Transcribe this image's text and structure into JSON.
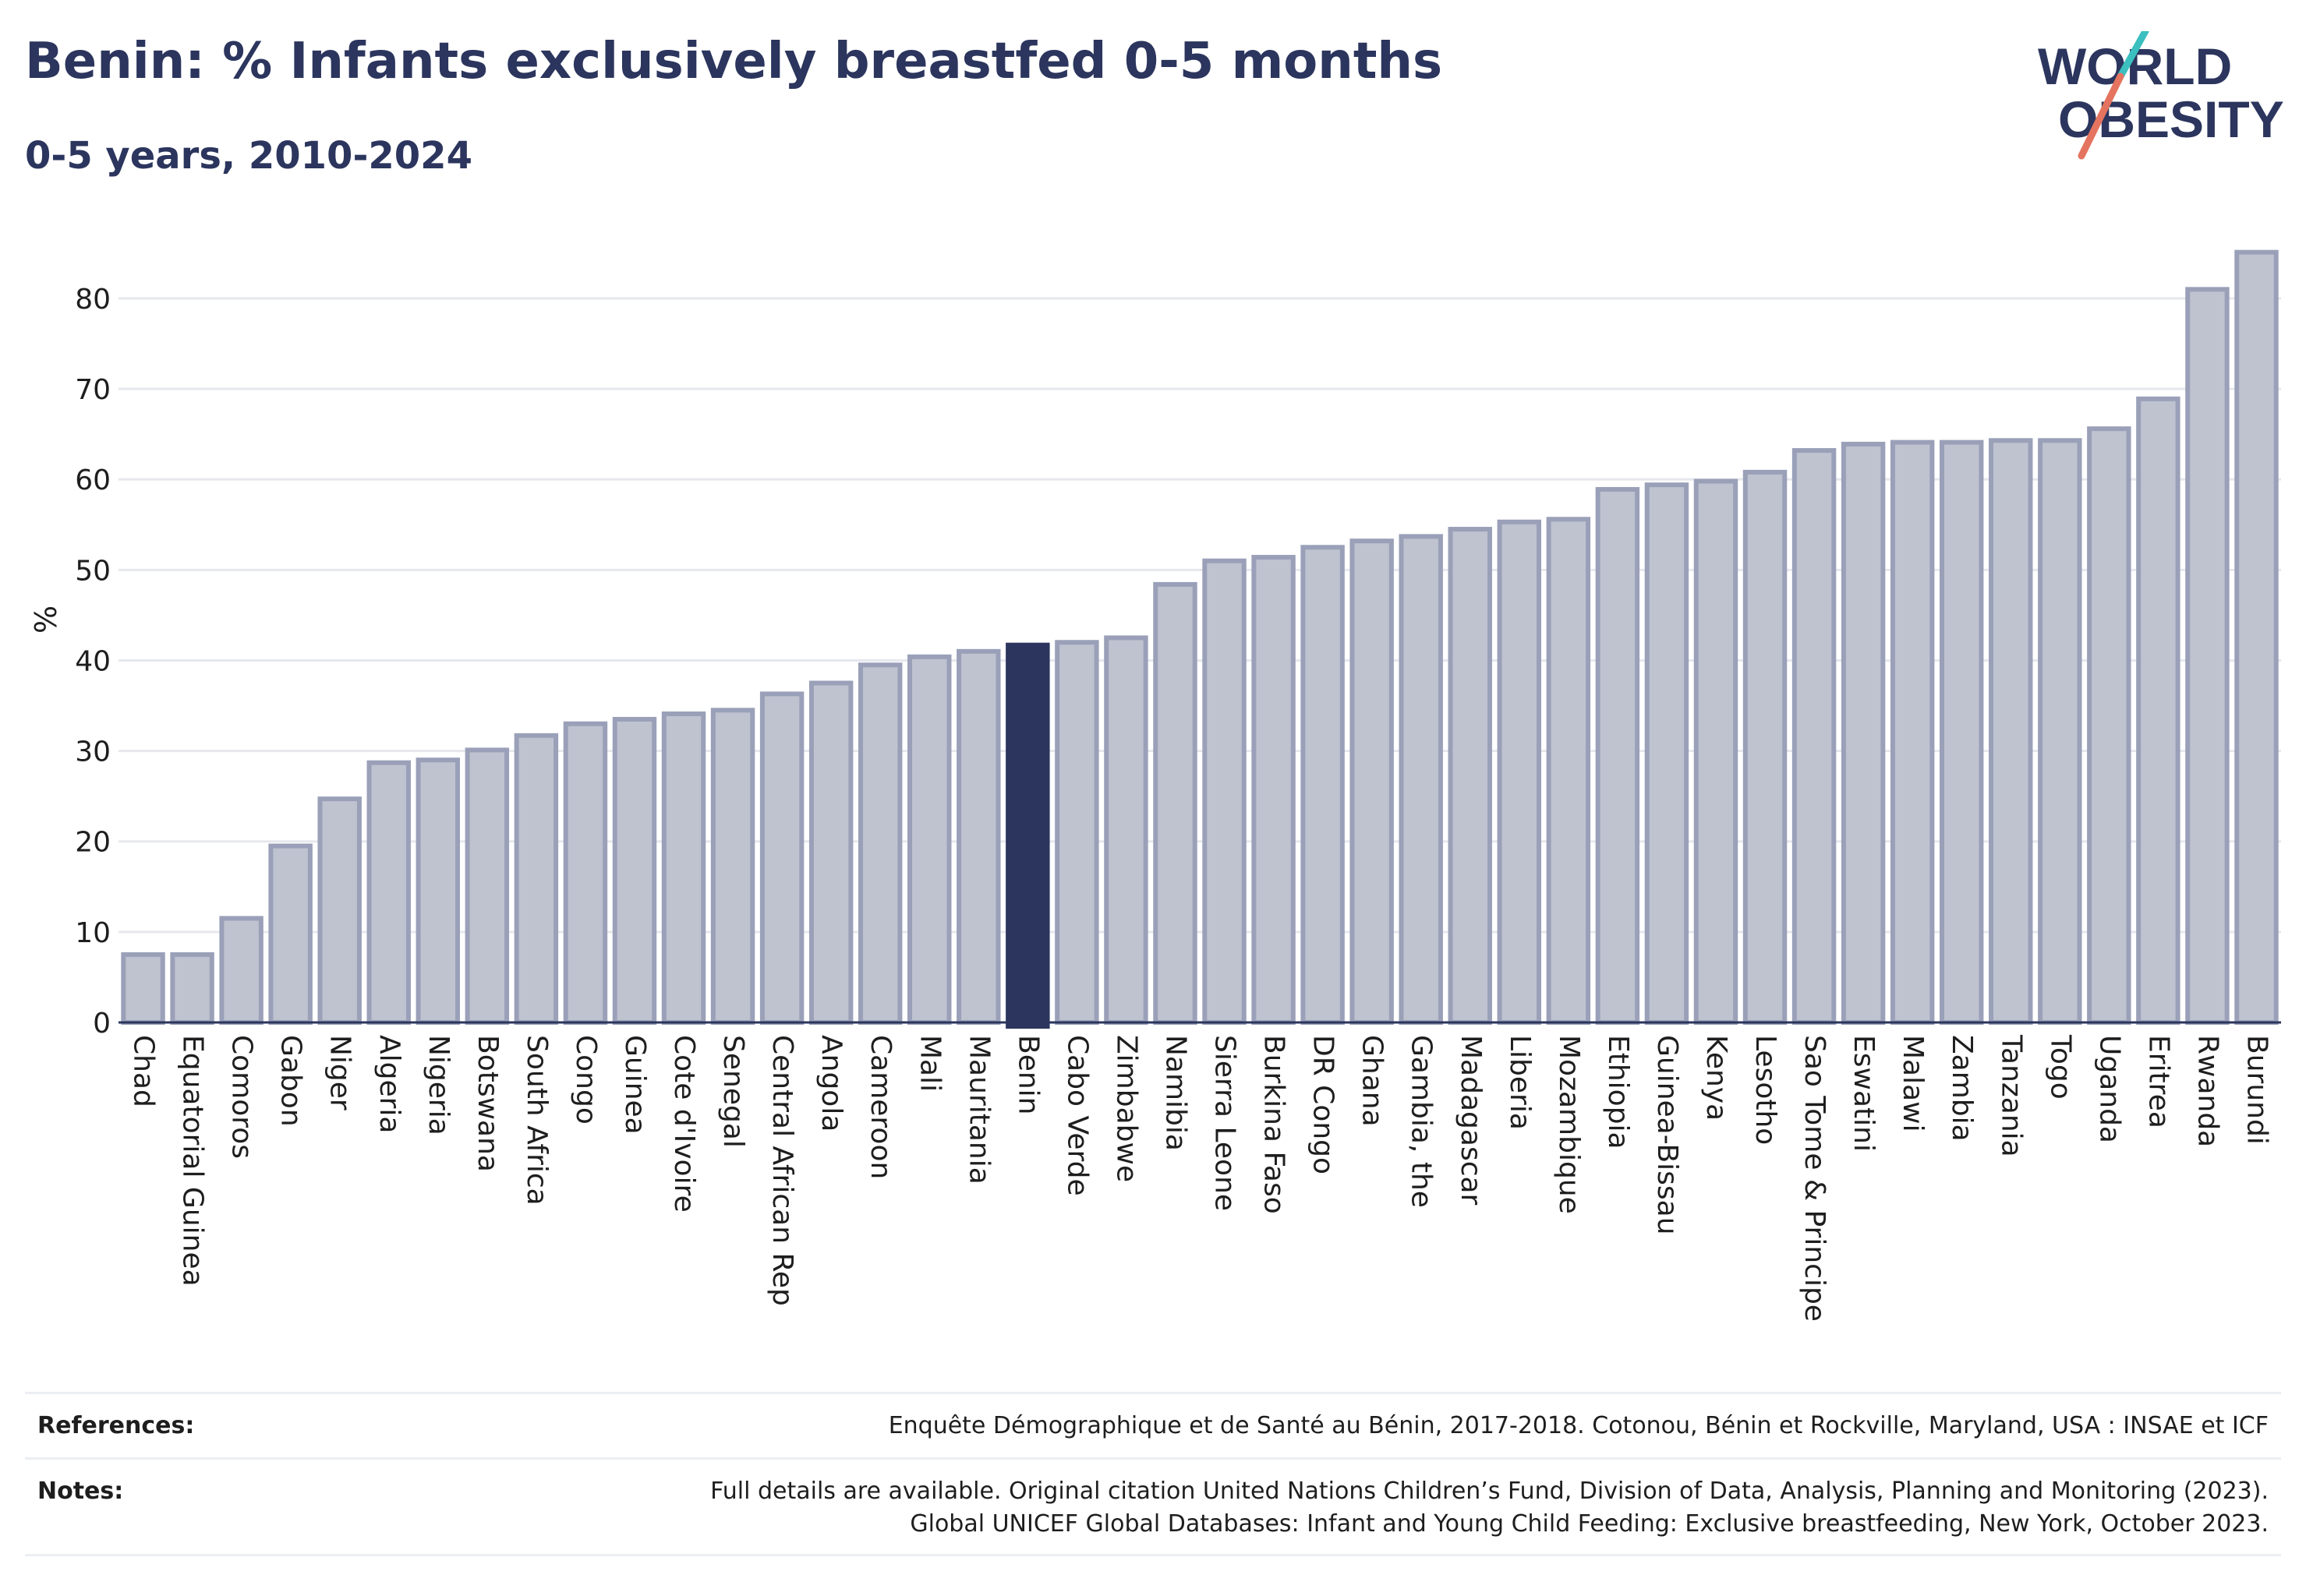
{
  "title": "Benin: % Infants exclusively breastfed 0-5 months",
  "subtitle": "0-5 years, 2010-2024",
  "logo": {
    "line1": "WORLD",
    "line2": "OBESITY"
  },
  "colors": {
    "bar": "#bfc3d0",
    "bar_stroke": "#9aa0b8",
    "highlight": "#2b355d",
    "grid": "#e6e8ee",
    "text": "#2b355d",
    "logo_teal": "#3bbfbf",
    "logo_coral": "#e4745f"
  },
  "chart_data": {
    "type": "bar",
    "ylabel": "%",
    "ylim": [
      0,
      88
    ],
    "yticks": [
      0,
      10,
      20,
      30,
      40,
      50,
      60,
      70,
      80
    ],
    "grid": true,
    "highlight": "Benin",
    "categories": [
      "Chad",
      "Equatorial Guinea",
      "Comoros",
      "Gabon",
      "Niger",
      "Algeria",
      "Nigeria",
      "Botswana",
      "South Africa",
      "Congo",
      "Guinea",
      "Cote d'Ivoire",
      "Senegal",
      "Central African Rep",
      "Angola",
      "Cameroon",
      "Mali",
      "Mauritania",
      "Benin",
      "Cabo Verde",
      "Zimbabwe",
      "Namibia",
      "Sierra Leone",
      "Burkina Faso",
      "DR Congo",
      "Ghana",
      "Gambia, the",
      "Madagascar",
      "Liberia",
      "Mozambique",
      "Ethiopia",
      "Guinea-Bissau",
      "Kenya",
      "Lesotho",
      "Sao Tome & Principe",
      "Eswatini",
      "Malawi",
      "Zambia",
      "Tanzania",
      "Togo",
      "Uganda",
      "Eritrea",
      "Rwanda",
      "Burundi"
    ],
    "values": [
      7.5,
      7.5,
      11.5,
      19.5,
      24.7,
      28.7,
      29.0,
      30.1,
      31.7,
      33.0,
      33.5,
      34.1,
      34.5,
      36.3,
      37.5,
      39.5,
      40.4,
      41.0,
      41.7,
      42.0,
      42.5,
      48.4,
      51.0,
      51.4,
      52.5,
      53.2,
      53.7,
      54.5,
      55.3,
      55.6,
      58.9,
      59.4,
      59.8,
      60.8,
      63.2,
      63.9,
      64.1,
      64.1,
      64.3,
      64.3,
      65.6,
      68.9,
      81.0,
      85.1
    ]
  },
  "footer": {
    "references_label": "References:",
    "references_text": "Enquête Démographique et de Santé au Bénin, 2017-2018. Cotonou, Bénin et Rockville, Maryland, USA : INSAE et ICF",
    "notes_label": "Notes:",
    "notes_line1": "Full details are available. Original citation United Nations Children’s Fund, Division of Data, Analysis, Planning and Monitoring (2023).",
    "notes_line2": "Global UNICEF Global Databases: Infant and Young Child Feeding: Exclusive breastfeeding, New York, October 2023."
  }
}
